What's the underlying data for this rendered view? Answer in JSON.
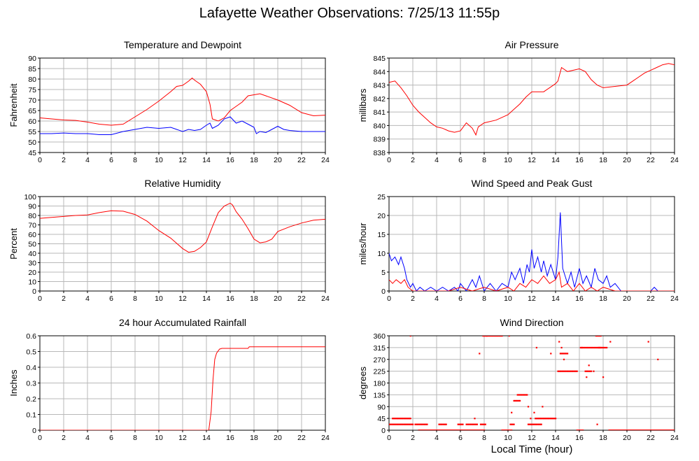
{
  "page": {
    "title": "Lafayette Weather Observations: 7/25/13 11:55p",
    "xlabel": "Local Time (hour)"
  },
  "colors": {
    "red": "#ff0000",
    "blue": "#0000ff",
    "grid": "#b8b8b8"
  },
  "chart_data": [
    {
      "id": "temp",
      "type": "line",
      "title": "Temperature and Dewpoint",
      "ylabel": "Fahrenheit",
      "xlim": [
        0,
        24
      ],
      "ylim": [
        45,
        90
      ],
      "xticks": [
        0,
        2,
        4,
        6,
        8,
        10,
        12,
        14,
        16,
        18,
        20,
        22,
        24
      ],
      "yticks": [
        45,
        50,
        55,
        60,
        65,
        70,
        75,
        80,
        85,
        90
      ],
      "grid": true,
      "series": [
        {
          "color": "red",
          "x": [
            0,
            1,
            2,
            3,
            4,
            5,
            6,
            7,
            8,
            9,
            10,
            11,
            11.5,
            12,
            12.5,
            12.8,
            13,
            13.5,
            14,
            14.3,
            14.5,
            15,
            15.5,
            16,
            16.5,
            17,
            17.5,
            18,
            18.5,
            19,
            20,
            21,
            22,
            23,
            24
          ],
          "y": [
            61.5,
            61,
            60.5,
            60.3,
            59.5,
            58.5,
            58,
            58.5,
            62,
            65.5,
            69.5,
            74,
            76.5,
            77,
            79,
            80.5,
            79.5,
            77.5,
            74,
            68,
            61,
            60,
            61.5,
            65,
            67,
            69,
            72,
            72.5,
            73,
            72,
            70,
            67.5,
            64,
            62.5,
            62.8
          ]
        },
        {
          "color": "blue",
          "x": [
            0,
            1,
            2,
            3,
            4,
            5,
            6,
            7,
            8,
            9,
            10,
            11,
            11.5,
            12,
            12.5,
            13,
            13.5,
            14,
            14.3,
            14.5,
            15,
            15.5,
            16,
            16.5,
            17,
            17.5,
            18,
            18.2,
            18.5,
            19,
            19.5,
            20,
            20.5,
            21,
            22,
            23,
            24
          ],
          "y": [
            54,
            54,
            54.3,
            54,
            54,
            53.5,
            53.5,
            55,
            56,
            57,
            56.5,
            57,
            56,
            55,
            56,
            55.5,
            56,
            58,
            59,
            56.5,
            58,
            61,
            62,
            59,
            60,
            58.5,
            57,
            54,
            55,
            54.5,
            56,
            57.5,
            56,
            55.5,
            55,
            55,
            55
          ]
        }
      ]
    },
    {
      "id": "pressure",
      "type": "line",
      "title": "Air Pressure",
      "ylabel": "millibars",
      "xlim": [
        0,
        24
      ],
      "ylim": [
        838,
        845
      ],
      "xticks": [
        0,
        2,
        4,
        6,
        8,
        10,
        12,
        14,
        16,
        18,
        20,
        22,
        24
      ],
      "yticks": [
        838,
        839,
        840,
        841,
        842,
        843,
        844,
        845
      ],
      "grid": true,
      "series": [
        {
          "color": "red",
          "x": [
            0,
            0.5,
            1,
            1.5,
            2,
            2.5,
            3,
            3.5,
            4,
            4.5,
            5,
            5.5,
            6,
            6.5,
            7,
            7.3,
            7.5,
            8,
            9,
            10,
            10.5,
            11,
            11.5,
            12,
            12.5,
            13,
            13.5,
            14,
            14.2,
            14.5,
            15,
            15.5,
            16,
            16.5,
            17,
            17.5,
            18,
            19,
            20,
            20.5,
            21,
            21.5,
            22,
            22.5,
            23,
            23.5,
            24
          ],
          "y": [
            843.2,
            843.3,
            842.8,
            842.2,
            841.5,
            841,
            840.6,
            840.2,
            839.9,
            839.8,
            839.6,
            839.5,
            839.6,
            840.2,
            839.8,
            839.3,
            839.9,
            840.2,
            840.4,
            840.8,
            841.2,
            841.6,
            842.1,
            842.5,
            842.5,
            842.5,
            842.8,
            843.1,
            843.3,
            844.3,
            844,
            844.1,
            844.2,
            844,
            843.4,
            843,
            842.8,
            842.9,
            843,
            843.3,
            843.6,
            843.9,
            844.1,
            844.3,
            844.5,
            844.6,
            844.5
          ]
        }
      ]
    },
    {
      "id": "humidity",
      "type": "line",
      "title": "Relative Humidity",
      "ylabel": "Percent",
      "xlim": [
        0,
        24
      ],
      "ylim": [
        0,
        100
      ],
      "xticks": [
        0,
        2,
        4,
        6,
        8,
        10,
        12,
        14,
        16,
        18,
        20,
        22,
        24
      ],
      "yticks": [
        0,
        10,
        20,
        30,
        40,
        50,
        60,
        70,
        80,
        90,
        100
      ],
      "grid": true,
      "series": [
        {
          "color": "red",
          "x": [
            0,
            1,
            2,
            3,
            4,
            5,
            6,
            7,
            8,
            9,
            10,
            11,
            12,
            12.5,
            13,
            13.5,
            14,
            14.5,
            15,
            15.5,
            16,
            16.2,
            16.5,
            17,
            17.5,
            18,
            18.5,
            19,
            19.5,
            20,
            21,
            22,
            23,
            24
          ],
          "y": [
            77,
            78,
            79,
            80,
            80.5,
            83,
            85,
            84.5,
            81,
            74,
            64,
            56,
            45,
            41,
            42,
            46,
            52,
            68,
            83,
            90,
            93,
            91,
            84,
            76,
            66,
            55,
            51,
            52,
            55,
            63,
            68,
            72,
            75,
            76
          ]
        }
      ]
    },
    {
      "id": "wind",
      "type": "line",
      "title": "Wind Speed and Peak Gust",
      "ylabel": "miles/hour",
      "xlim": [
        0,
        24
      ],
      "ylim": [
        0,
        25
      ],
      "xticks": [
        0,
        2,
        4,
        6,
        8,
        10,
        12,
        14,
        16,
        18,
        20,
        22,
        24
      ],
      "yticks": [
        0,
        5,
        10,
        15,
        20,
        25
      ],
      "grid": true,
      "series": [
        {
          "color": "blue",
          "x": [
            0,
            0.2,
            0.5,
            0.8,
            1,
            1.3,
            1.5,
            1.8,
            2,
            2.3,
            2.6,
            3,
            3.5,
            4,
            4.5,
            5,
            5.5,
            5.8,
            6,
            6.5,
            7,
            7.3,
            7.6,
            8,
            8.5,
            9,
            9.5,
            10,
            10.3,
            10.6,
            11,
            11.3,
            11.6,
            11.8,
            12,
            12.2,
            12.5,
            12.8,
            13,
            13.3,
            13.6,
            14,
            14.2,
            14.4,
            14.6,
            15,
            15.3,
            15.6,
            16,
            16.3,
            16.6,
            17,
            17.3,
            17.6,
            18,
            18.3,
            18.6,
            19,
            19.5,
            20,
            22,
            22.3,
            22.6,
            23,
            24
          ],
          "y": [
            10,
            8,
            9,
            7,
            9,
            6,
            3,
            1,
            2,
            0,
            1,
            0,
            1,
            0,
            1,
            0,
            1,
            0,
            2,
            0,
            3,
            1,
            4,
            0,
            2,
            0,
            2,
            1,
            5,
            3,
            6,
            2,
            7,
            5,
            11,
            6,
            9,
            5,
            8,
            4,
            7,
            3,
            9,
            20.8,
            6,
            2,
            5,
            1,
            6,
            2,
            4,
            1,
            6,
            3,
            2,
            4,
            1,
            2,
            0,
            0,
            0,
            1,
            0,
            0,
            0
          ]
        },
        {
          "color": "red",
          "x": [
            0,
            0.3,
            0.6,
            1,
            1.3,
            1.6,
            2,
            3,
            4,
            5,
            6,
            7,
            8,
            9,
            10,
            10.5,
            11,
            11.5,
            12,
            12.5,
            13,
            13.5,
            14,
            14.3,
            14.5,
            15,
            15.5,
            16,
            16.5,
            17,
            17.5,
            18,
            19,
            20,
            24
          ],
          "y": [
            3,
            2,
            3,
            2,
            3,
            1,
            0,
            0,
            0,
            0,
            1,
            0,
            1,
            0,
            1,
            0,
            2,
            1,
            3,
            2,
            4,
            2,
            3,
            5,
            1,
            2,
            0,
            2,
            0,
            1,
            0,
            1,
            0,
            0,
            0
          ]
        }
      ]
    },
    {
      "id": "rain",
      "type": "line",
      "title": "24 hour Accumulated Rainfall",
      "ylabel": "Inches",
      "xlim": [
        0,
        24
      ],
      "ylim": [
        0,
        0.6
      ],
      "xticks": [
        0,
        2,
        4,
        6,
        8,
        10,
        12,
        14,
        16,
        18,
        20,
        22,
        24
      ],
      "yticks": [
        0,
        0.1,
        0.2,
        0.3,
        0.4,
        0.5,
        0.6
      ],
      "grid": true,
      "series": [
        {
          "color": "red",
          "x": [
            0,
            14.2,
            14.4,
            14.55,
            14.7,
            14.85,
            15,
            15.1,
            15.3,
            17.5,
            17.6,
            24
          ],
          "y": [
            0,
            0,
            0.12,
            0.32,
            0.45,
            0.49,
            0.505,
            0.515,
            0.52,
            0.52,
            0.53,
            0.53
          ]
        }
      ]
    },
    {
      "id": "direction",
      "type": "scatter",
      "title": "Wind Direction",
      "ylabel": "degrees",
      "xlim": [
        0,
        24
      ],
      "ylim": [
        0,
        360
      ],
      "xticks": [
        0,
        2,
        4,
        6,
        8,
        10,
        12,
        14,
        16,
        18,
        20,
        22,
        24
      ],
      "yticks": [
        0,
        45,
        90,
        135,
        180,
        225,
        270,
        315,
        360
      ],
      "grid": true,
      "segments": [
        {
          "x0": 0,
          "x1": 2.0,
          "y": 22.5
        },
        {
          "x0": 0.3,
          "x1": 1.8,
          "y": 45
        },
        {
          "x0": 2.2,
          "x1": 3.2,
          "y": 22.5
        },
        {
          "x0": 2.5,
          "x1": 8.0,
          "y": 0
        },
        {
          "x0": 4.2,
          "x1": 4.8,
          "y": 22.5
        },
        {
          "x0": 5.8,
          "x1": 6.2,
          "y": 22.5
        },
        {
          "x0": 6.5,
          "x1": 7.4,
          "y": 22.5
        },
        {
          "x0": 7.7,
          "x1": 8.1,
          "y": 22.5
        },
        {
          "x0": 7.9,
          "x1": 9.5,
          "y": 360
        },
        {
          "x0": 9.5,
          "x1": 10.3,
          "y": 0
        },
        {
          "x0": 10.2,
          "x1": 10.5,
          "y": 22.5
        },
        {
          "x0": 10.5,
          "x1": 11.0,
          "y": 112.5
        },
        {
          "x0": 10.8,
          "x1": 11.6,
          "y": 135
        },
        {
          "x0": 11.7,
          "x1": 12.8,
          "y": 22.5
        },
        {
          "x0": 12.3,
          "x1": 14.0,
          "y": 45
        },
        {
          "x0": 14.2,
          "x1": 15.8,
          "y": 225
        },
        {
          "x0": 14.4,
          "x1": 15.0,
          "y": 292.5
        },
        {
          "x0": 15.8,
          "x1": 16.3,
          "y": 0
        },
        {
          "x0": 16.1,
          "x1": 17.8,
          "y": 315
        },
        {
          "x0": 16.5,
          "x1": 17.0,
          "y": 225
        },
        {
          "x0": 18.5,
          "x1": 24,
          "y": 0
        },
        {
          "x0": 17.6,
          "x1": 18.3,
          "y": 315
        },
        {
          "x0": 17.4,
          "x1": 17.8,
          "y": 360
        }
      ],
      "points": [
        {
          "x": 1.8,
          "y": 360
        },
        {
          "x": 7.6,
          "y": 292.5
        },
        {
          "x": 7.2,
          "y": 45
        },
        {
          "x": 10.3,
          "y": 67.5
        },
        {
          "x": 11.7,
          "y": 90
        },
        {
          "x": 11.9,
          "y": 45
        },
        {
          "x": 12.2,
          "y": 67.5
        },
        {
          "x": 12.4,
          "y": 315
        },
        {
          "x": 13.6,
          "y": 292.5
        },
        {
          "x": 14.3,
          "y": 337.5
        },
        {
          "x": 14.5,
          "y": 315
        },
        {
          "x": 14.7,
          "y": 270
        },
        {
          "x": 16.2,
          "y": 315
        },
        {
          "x": 16.6,
          "y": 202.5
        },
        {
          "x": 16.8,
          "y": 247.5
        },
        {
          "x": 17.2,
          "y": 225
        },
        {
          "x": 17.5,
          "y": 22.5
        },
        {
          "x": 18.0,
          "y": 202.5
        },
        {
          "x": 18.6,
          "y": 337.5
        },
        {
          "x": 21.8,
          "y": 337.5
        },
        {
          "x": 22.6,
          "y": 270
        },
        {
          "x": 12.9,
          "y": 90
        },
        {
          "x": 8.2,
          "y": 360
        },
        {
          "x": 10.1,
          "y": 360
        }
      ]
    }
  ]
}
